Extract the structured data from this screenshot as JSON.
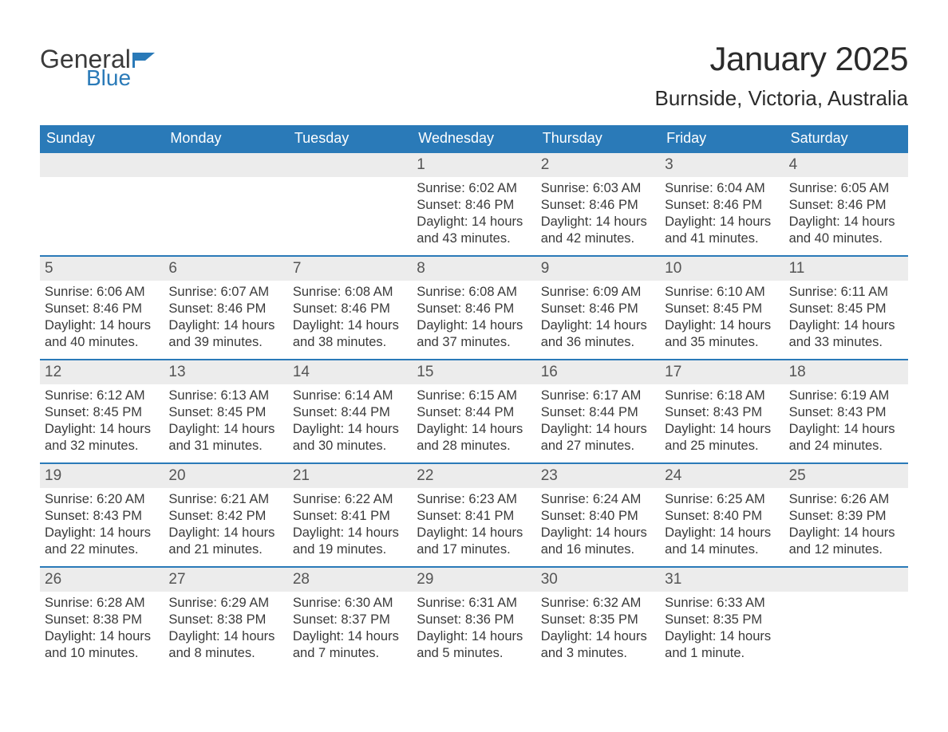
{
  "logo": {
    "word1": "General",
    "word2": "Blue",
    "icon_color": "#2a7ab8",
    "text_gray": "#3a3a3a"
  },
  "title": "January 2025",
  "location": "Burnside, Victoria, Australia",
  "colors": {
    "header_bg": "#2a7ab8",
    "header_text": "#ffffff",
    "daynum_bg": "#ececec",
    "row_border": "#2a7ab8",
    "body_text": "#3a3a3a",
    "page_bg": "#ffffff"
  },
  "typography": {
    "title_fontsize": 42,
    "location_fontsize": 26,
    "weekday_fontsize": 18,
    "daynum_fontsize": 19,
    "body_fontsize": 16.5
  },
  "weekdays": [
    "Sunday",
    "Monday",
    "Tuesday",
    "Wednesday",
    "Thursday",
    "Friday",
    "Saturday"
  ],
  "labels": {
    "sunrise": "Sunrise:",
    "sunset": "Sunset:",
    "daylight": "Daylight:"
  },
  "weeks": [
    [
      null,
      null,
      null,
      {
        "n": "1",
        "sunrise": "6:02 AM",
        "sunset": "8:46 PM",
        "daylight": "14 hours and 43 minutes."
      },
      {
        "n": "2",
        "sunrise": "6:03 AM",
        "sunset": "8:46 PM",
        "daylight": "14 hours and 42 minutes."
      },
      {
        "n": "3",
        "sunrise": "6:04 AM",
        "sunset": "8:46 PM",
        "daylight": "14 hours and 41 minutes."
      },
      {
        "n": "4",
        "sunrise": "6:05 AM",
        "sunset": "8:46 PM",
        "daylight": "14 hours and 40 minutes."
      }
    ],
    [
      {
        "n": "5",
        "sunrise": "6:06 AM",
        "sunset": "8:46 PM",
        "daylight": "14 hours and 40 minutes."
      },
      {
        "n": "6",
        "sunrise": "6:07 AM",
        "sunset": "8:46 PM",
        "daylight": "14 hours and 39 minutes."
      },
      {
        "n": "7",
        "sunrise": "6:08 AM",
        "sunset": "8:46 PM",
        "daylight": "14 hours and 38 minutes."
      },
      {
        "n": "8",
        "sunrise": "6:08 AM",
        "sunset": "8:46 PM",
        "daylight": "14 hours and 37 minutes."
      },
      {
        "n": "9",
        "sunrise": "6:09 AM",
        "sunset": "8:46 PM",
        "daylight": "14 hours and 36 minutes."
      },
      {
        "n": "10",
        "sunrise": "6:10 AM",
        "sunset": "8:45 PM",
        "daylight": "14 hours and 35 minutes."
      },
      {
        "n": "11",
        "sunrise": "6:11 AM",
        "sunset": "8:45 PM",
        "daylight": "14 hours and 33 minutes."
      }
    ],
    [
      {
        "n": "12",
        "sunrise": "6:12 AM",
        "sunset": "8:45 PM",
        "daylight": "14 hours and 32 minutes."
      },
      {
        "n": "13",
        "sunrise": "6:13 AM",
        "sunset": "8:45 PM",
        "daylight": "14 hours and 31 minutes."
      },
      {
        "n": "14",
        "sunrise": "6:14 AM",
        "sunset": "8:44 PM",
        "daylight": "14 hours and 30 minutes."
      },
      {
        "n": "15",
        "sunrise": "6:15 AM",
        "sunset": "8:44 PM",
        "daylight": "14 hours and 28 minutes."
      },
      {
        "n": "16",
        "sunrise": "6:17 AM",
        "sunset": "8:44 PM",
        "daylight": "14 hours and 27 minutes."
      },
      {
        "n": "17",
        "sunrise": "6:18 AM",
        "sunset": "8:43 PM",
        "daylight": "14 hours and 25 minutes."
      },
      {
        "n": "18",
        "sunrise": "6:19 AM",
        "sunset": "8:43 PM",
        "daylight": "14 hours and 24 minutes."
      }
    ],
    [
      {
        "n": "19",
        "sunrise": "6:20 AM",
        "sunset": "8:43 PM",
        "daylight": "14 hours and 22 minutes."
      },
      {
        "n": "20",
        "sunrise": "6:21 AM",
        "sunset": "8:42 PM",
        "daylight": "14 hours and 21 minutes."
      },
      {
        "n": "21",
        "sunrise": "6:22 AM",
        "sunset": "8:41 PM",
        "daylight": "14 hours and 19 minutes."
      },
      {
        "n": "22",
        "sunrise": "6:23 AM",
        "sunset": "8:41 PM",
        "daylight": "14 hours and 17 minutes."
      },
      {
        "n": "23",
        "sunrise": "6:24 AM",
        "sunset": "8:40 PM",
        "daylight": "14 hours and 16 minutes."
      },
      {
        "n": "24",
        "sunrise": "6:25 AM",
        "sunset": "8:40 PM",
        "daylight": "14 hours and 14 minutes."
      },
      {
        "n": "25",
        "sunrise": "6:26 AM",
        "sunset": "8:39 PM",
        "daylight": "14 hours and 12 minutes."
      }
    ],
    [
      {
        "n": "26",
        "sunrise": "6:28 AM",
        "sunset": "8:38 PM",
        "daylight": "14 hours and 10 minutes."
      },
      {
        "n": "27",
        "sunrise": "6:29 AM",
        "sunset": "8:38 PM",
        "daylight": "14 hours and 8 minutes."
      },
      {
        "n": "28",
        "sunrise": "6:30 AM",
        "sunset": "8:37 PM",
        "daylight": "14 hours and 7 minutes."
      },
      {
        "n": "29",
        "sunrise": "6:31 AM",
        "sunset": "8:36 PM",
        "daylight": "14 hours and 5 minutes."
      },
      {
        "n": "30",
        "sunrise": "6:32 AM",
        "sunset": "8:35 PM",
        "daylight": "14 hours and 3 minutes."
      },
      {
        "n": "31",
        "sunrise": "6:33 AM",
        "sunset": "8:35 PM",
        "daylight": "14 hours and 1 minute."
      },
      null
    ]
  ]
}
